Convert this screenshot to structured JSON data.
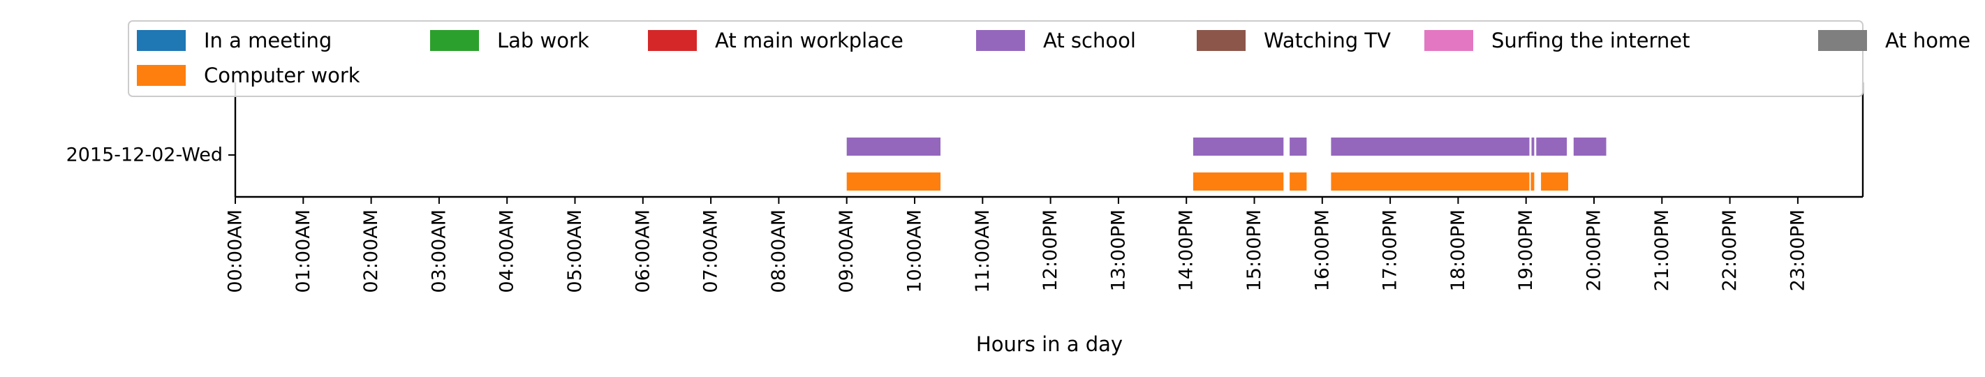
{
  "chart_data": {
    "type": "timeline",
    "title": "",
    "xlabel": "Hours in a day",
    "ylabel": "",
    "xlim": [
      0,
      24
    ],
    "x_ticks": [
      "00:00AM",
      "01:00AM",
      "02:00AM",
      "03:00AM",
      "04:00AM",
      "05:00AM",
      "06:00AM",
      "07:00AM",
      "08:00AM",
      "09:00AM",
      "10:00AM",
      "11:00AM",
      "12:00PM",
      "13:00PM",
      "14:00PM",
      "15:00PM",
      "16:00PM",
      "17:00PM",
      "18:00PM",
      "19:00PM",
      "20:00PM",
      "21:00PM",
      "22:00PM",
      "23:00PM"
    ],
    "y_categories": [
      "2015-12-02-Wed"
    ],
    "legend": {
      "position": "top",
      "entries": [
        {
          "label": "In a meeting",
          "color": "#1f77b4"
        },
        {
          "label": "Lab work",
          "color": "#2ca02c"
        },
        {
          "label": "At main workplace",
          "color": "#d62728"
        },
        {
          "label": "At school",
          "color": "#9467bd"
        },
        {
          "label": "Watching TV",
          "color": "#8c564b"
        },
        {
          "label": "Surfing the internet",
          "color": "#e377c2"
        },
        {
          "label": "At home",
          "color": "#7f7f7f"
        },
        {
          "label": "Computer work",
          "color": "#ff7f0e"
        }
      ]
    },
    "series": [
      {
        "name": "At school",
        "color": "#9467bd",
        "day": "2015-12-02-Wed",
        "intervals": [
          [
            9.0,
            10.38
          ],
          [
            14.1,
            15.43
          ],
          [
            15.52,
            15.77
          ],
          [
            16.13,
            19.05
          ],
          [
            19.08,
            19.12
          ],
          [
            19.15,
            19.6
          ],
          [
            19.7,
            20.18
          ]
        ]
      },
      {
        "name": "Computer work",
        "color": "#ff7f0e",
        "day": "2015-12-02-Wed",
        "intervals": [
          [
            9.0,
            10.38
          ],
          [
            14.1,
            15.43
          ],
          [
            15.52,
            15.77
          ],
          [
            16.13,
            19.05
          ],
          [
            19.07,
            19.12
          ],
          [
            19.22,
            19.62
          ]
        ]
      }
    ]
  }
}
